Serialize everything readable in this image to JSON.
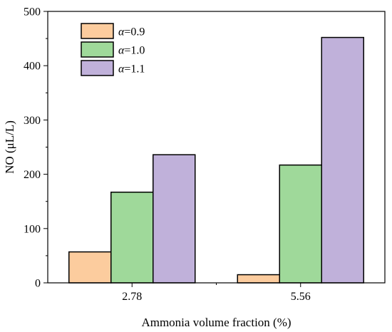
{
  "chart_data": {
    "type": "bar",
    "xlabel": "Ammonia volume fraction (%)",
    "ylabel": "NO (μL/L)",
    "categories": [
      "2.78",
      "5.56"
    ],
    "ylim": [
      0,
      500
    ],
    "yticks": [
      0,
      100,
      200,
      300,
      400,
      500
    ],
    "legend_position": "top-left",
    "grid": false,
    "series": [
      {
        "name": "α=0.9",
        "symbol": "α",
        "label_rest": "=0.9",
        "color": "#FCCC9E",
        "values": [
          57,
          15
        ]
      },
      {
        "name": "α=1.0",
        "symbol": "α",
        "label_rest": "=1.0",
        "color": "#9FD99A",
        "values": [
          167,
          217
        ]
      },
      {
        "name": "α=1.1",
        "symbol": "α",
        "label_rest": "=1.1",
        "color": "#C0B1DA",
        "values": [
          236,
          452
        ]
      }
    ]
  }
}
